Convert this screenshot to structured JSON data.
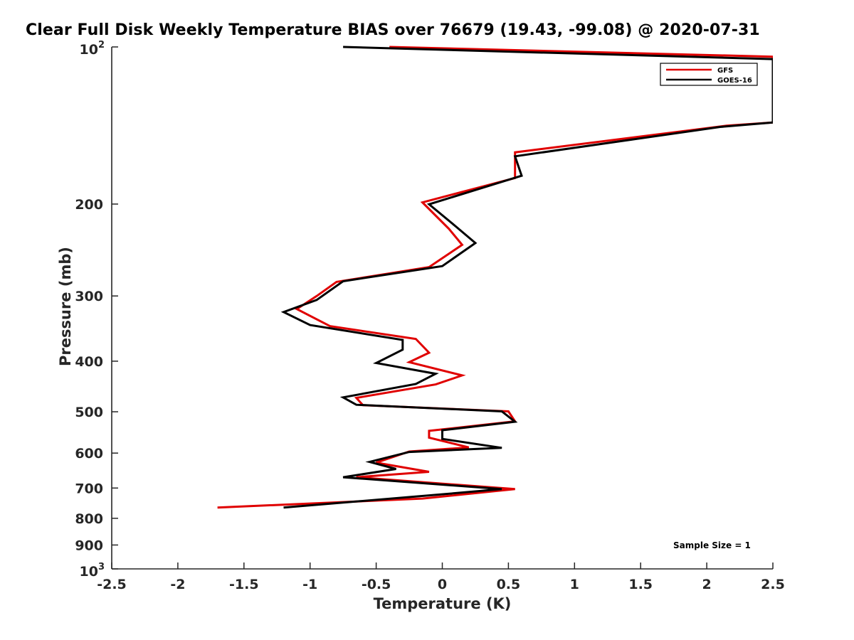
{
  "chart_data": {
    "type": "line",
    "title": "Clear Full Disk Weekly Temperature BIAS over 76679 (19.43, -99.08) @ 2020-07-31",
    "xlabel": "Temperature (K)",
    "ylabel": "Pressure (mb)",
    "xlim": [
      -2.5,
      2.5
    ],
    "ylim": [
      100,
      1000
    ],
    "y_scale": "log",
    "y_reversed": true,
    "grid": false,
    "legend_position": "top-right",
    "x_ticks": [
      -2.5,
      -2,
      -1.5,
      -1,
      -0.5,
      0,
      0.5,
      1,
      1.5,
      2,
      2.5
    ],
    "x_tick_labels": [
      "-2.5",
      "-2",
      "-1.5",
      "-1",
      "-0.5",
      "0",
      "0.5",
      "1",
      "1.5",
      "2",
      "2.5"
    ],
    "y_ticks": [
      200,
      300,
      400,
      500,
      600,
      700,
      800,
      900
    ],
    "y_tick_labels": [
      "200",
      "300",
      "400",
      "500",
      "600",
      "700",
      "800",
      "900"
    ],
    "y_top_label": {
      "base": "10",
      "exp": "2"
    },
    "y_bottom_label": {
      "base": "10",
      "exp": "3"
    },
    "annotation": "Sample Size = 1",
    "series": [
      {
        "name": "GFS",
        "color": "#e00000",
        "points": [
          [
            -0.4,
            100
          ],
          [
            2.5,
            104.4
          ],
          [
            2.5,
            139.6
          ],
          [
            2.15,
            141.5
          ],
          [
            0.55,
            159.2
          ],
          [
            0.55,
            178.3
          ],
          [
            -0.15,
            198.5
          ],
          [
            0.05,
            223.1
          ],
          [
            0.15,
            239.4
          ],
          [
            -0.1,
            264.1
          ],
          [
            -0.8,
            281.9
          ],
          [
            -0.95,
            300.1
          ],
          [
            -1.1,
            317.8
          ],
          [
            -0.85,
            342.7
          ],
          [
            -0.2,
            362.6
          ],
          [
            -0.1,
            385.3
          ],
          [
            -0.25,
            401.7
          ],
          [
            0.15,
            425.9
          ],
          [
            -0.05,
            443.2
          ],
          [
            -0.65,
            470.2
          ],
          [
            -0.6,
            485.7
          ],
          [
            0.5,
            499.1
          ],
          [
            0.55,
            521.5
          ],
          [
            -0.1,
            543.9
          ],
          [
            -0.1,
            560.4
          ],
          [
            0.2,
            585.2
          ],
          [
            -0.25,
            596.0
          ],
          [
            -0.5,
            625.9
          ],
          [
            -0.1,
            651.7
          ],
          [
            -0.65,
            667.3
          ],
          [
            0.55,
            703.3
          ],
          [
            -0.15,
            733.2
          ],
          [
            -1.7,
            763.0
          ]
        ]
      },
      {
        "name": "GOES-16",
        "color": "#000000",
        "points": [
          [
            -0.75,
            100
          ],
          [
            2.5,
            105.5
          ],
          [
            2.5,
            139.6
          ],
          [
            2.1,
            142.3
          ],
          [
            0.55,
            162.0
          ],
          [
            0.6,
            176.5
          ],
          [
            -0.1,
            200.2
          ],
          [
            0.1,
            220.5
          ],
          [
            0.25,
            237.5
          ],
          [
            0.0,
            263.0
          ],
          [
            -0.75,
            281.1
          ],
          [
            -0.95,
            305.3
          ],
          [
            -1.2,
            322.0
          ],
          [
            -1.0,
            341.1
          ],
          [
            -0.3,
            364.2
          ],
          [
            -0.3,
            380.2
          ],
          [
            -0.5,
            403.3
          ],
          [
            -0.05,
            422.8
          ],
          [
            -0.2,
            442.4
          ],
          [
            -0.75,
            469.2
          ],
          [
            -0.65,
            484.8
          ],
          [
            0.45,
            499.1
          ],
          [
            0.55,
            522.5
          ],
          [
            0.0,
            542.4
          ],
          [
            0.0,
            563.6
          ],
          [
            0.45,
            586.3
          ],
          [
            -0.25,
            597.1
          ],
          [
            -0.55,
            623.6
          ],
          [
            -0.35,
            643.5
          ],
          [
            -0.75,
            667.3
          ],
          [
            0.45,
            703.3
          ],
          [
            -0.05,
            721.4
          ],
          [
            -1.2,
            763.0
          ]
        ]
      }
    ]
  }
}
